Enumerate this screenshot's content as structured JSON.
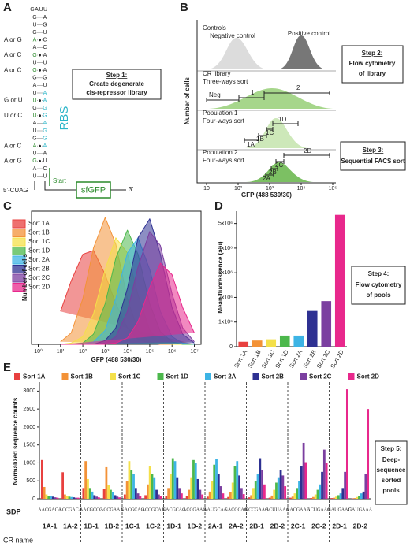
{
  "panel_a": {
    "label": "A",
    "loop": [
      "G",
      "A",
      "U",
      "U"
    ],
    "left_strand": [
      "G",
      "U",
      "G",
      "A",
      "A",
      "G",
      "U",
      "G",
      "G",
      "A",
      "U",
      "U",
      "G",
      "U",
      "A",
      "U",
      "G",
      "A",
      "U",
      "G",
      "A",
      "U"
    ],
    "right_strand": [
      "A",
      "G",
      "U",
      "C",
      "C",
      "A",
      "U",
      "A",
      "G",
      "U",
      "A",
      "A",
      "G",
      "G",
      "A",
      "G",
      "G",
      "A",
      "A",
      "U",
      "C",
      "U"
    ],
    "variants": [
      "A or G",
      "A or C",
      "A or C",
      "G or U",
      "U or C",
      "A or C",
      "A or G"
    ],
    "rbs": "RBS",
    "start": "Start",
    "five_prime": "5'-CUAG",
    "gene": "sfGFP",
    "three_prime": "3'",
    "step": {
      "title": "Step 1:",
      "lines": [
        "Create degenerate",
        "cis-repressor library"
      ]
    }
  },
  "panel_b": {
    "label": "B",
    "x_axis_label": "GFP (488 530/30)",
    "y_axis_label": "Number of cells",
    "xticks": [
      "10",
      "10²",
      "10³",
      "10⁴",
      "10⁵"
    ],
    "controls": {
      "title": "Controls",
      "negative": "Negative control",
      "positive": "Positive control"
    },
    "library": {
      "title": "CR library",
      "subtitle": "Three-ways sort",
      "gates": [
        "Neg",
        "1",
        "2"
      ]
    },
    "population_1": {
      "title": "Population 1",
      "subtitle": "Four-ways sort",
      "gates": [
        "1A",
        "1B",
        "1C",
        "1D"
      ]
    },
    "population_2": {
      "title": "Population 2",
      "subtitle": "Four-ways sort",
      "gates": [
        "2A",
        "2B",
        "2C",
        "2D"
      ]
    },
    "step_2": {
      "title": "Step 2:",
      "lines": [
        "Flow cytometry",
        "of library"
      ]
    },
    "step_3": {
      "title": "Step 3:",
      "lines": [
        "Sequential  FACS sort"
      ]
    }
  },
  "step_4": {
    "title": "Step 4:",
    "lines": [
      "Flow cytometry",
      "of pools"
    ]
  },
  "step_5": {
    "title": "Step 5:",
    "lines": [
      "Deep-",
      "sequence",
      "sorted",
      "pools"
    ]
  },
  "chart_data": [
    {
      "type": "area",
      "label": "C",
      "x_label": "GFP (488 530/30)",
      "y_label": "Number of cells",
      "log_x": true,
      "xlim": [
        0.5,
        20000000
      ],
      "xticks": [
        {
          "value": 1,
          "label": "10⁰"
        },
        {
          "value": 10,
          "label": "10¹"
        },
        {
          "value": 100,
          "label": "10²"
        },
        {
          "value": 1000,
          "label": "10³"
        },
        {
          "value": 10000,
          "label": "10⁴"
        },
        {
          "value": 100000,
          "label": "10⁵"
        },
        {
          "value": 1000000,
          "label": "10⁶"
        },
        {
          "value": 10000000,
          "label": "10⁷"
        }
      ],
      "ylim": [
        0,
        105
      ],
      "x": [
        10,
        30,
        100,
        300,
        1000,
        3000,
        10000,
        30000,
        100000,
        300000,
        1000000,
        3000000,
        10000000
      ],
      "series": [
        {
          "name": "Sort 1A",
          "color": "#e8403f",
          "values": [
            26,
            50,
            71,
            74,
            55,
            32,
            13,
            4,
            1,
            0,
            0,
            0,
            0
          ]
        },
        {
          "name": "Sort 1B",
          "color": "#f39237",
          "values": [
            2,
            9,
            36,
            76,
            100,
            79,
            36,
            11,
            2,
            0,
            0,
            0,
            0
          ]
        },
        {
          "name": "Sort 1C",
          "color": "#f4e04a",
          "values": [
            0,
            1,
            6,
            24,
            59,
            84,
            72,
            39,
            11,
            2,
            0,
            0,
            0
          ]
        },
        {
          "name": "Sort 1D",
          "color": "#4cb84c",
          "values": [
            0,
            0,
            1,
            8,
            32,
            68,
            90,
            71,
            32,
            10,
            2,
            0,
            0
          ]
        },
        {
          "name": "Sort 2A",
          "color": "#3db4e5",
          "values": [
            0,
            0,
            0,
            2,
            11,
            36,
            72,
            84,
            59,
            26,
            6,
            1,
            0
          ]
        },
        {
          "name": "Sort 2B",
          "color": "#2e3192",
          "values": [
            0,
            0,
            0,
            0,
            3,
            13,
            44,
            84,
            99,
            71,
            29,
            8,
            1
          ]
        },
        {
          "name": "Sort 2C",
          "color": "#7b3fa0",
          "values": [
            0,
            0,
            0,
            0,
            1,
            6,
            26,
            61,
            89,
            78,
            40,
            13,
            2
          ]
        },
        {
          "name": "Sort 2D",
          "color": "#e8288c",
          "values": [
            0,
            0,
            0,
            0,
            0,
            1,
            5,
            18,
            45,
            64,
            55,
            29,
            9
          ]
        }
      ]
    },
    {
      "type": "bar",
      "label": "D",
      "y_label": "Mean fluorescence (a.u)",
      "categories": [
        "Sort 1A",
        "Sort 1B",
        "Sort 1C",
        "Sort 1D",
        "Sort 2A",
        "Sort 2B",
        "Sort 2C",
        "Sort 2D"
      ],
      "values": [
        200000,
        250000,
        300000,
        450000,
        450000,
        1450000,
        1850000,
        5350000
      ],
      "colors": [
        "#e8403f",
        "#f39237",
        "#f4e04a",
        "#4cb84c",
        "#3db4e5",
        "#2e3192",
        "#7b3fa0",
        "#e8288c"
      ],
      "ylim": [
        0,
        5500000
      ],
      "yticks": [
        0,
        {
          "value": 1000000,
          "label": "1x10⁶"
        },
        {
          "value": 2000000,
          "label": "2x10⁶"
        },
        {
          "value": 3000000,
          "label": "3x10⁶"
        },
        {
          "value": 4000000,
          "label": "4x10⁶"
        },
        {
          "value": 5000000,
          "label": "5x10⁶"
        }
      ]
    },
    {
      "type": "grouped_bar",
      "label": "E",
      "y_label": "Normalized sequence counts",
      "sdp_label": "SDP",
      "category_label": "CR name",
      "categories": [
        "1A-1",
        "1A-2",
        "1B-1",
        "1B-2",
        "1C-1",
        "1C-2",
        "1D-1",
        "1D-2",
        "2A-1",
        "2A-2",
        "2B-1",
        "2B-2",
        "2C-1",
        "2C-2",
        "2D-1",
        "2D-2"
      ],
      "sdp": [
        "AACGACA",
        "ACCGACA",
        "AACGCCG",
        "ACCGAAA",
        "GACGCAG",
        "ACCGCAG",
        "GACGCAG",
        "ACCGAAG",
        "AAUGCAA",
        "GACGCAG",
        "GCCGAAG",
        "ACUUAAA",
        "GACGAAG",
        "ACUGAAG",
        "GAUGAAG",
        "GAUGAAA"
      ],
      "ylim": [
        0,
        3250
      ],
      "yticks": [
        0,
        500,
        1000,
        1500,
        2000,
        2500,
        3000
      ],
      "series": [
        {
          "name": "Sort 1A",
          "color": "#e8403f",
          "values": [
            1080,
            740,
            300,
            280,
            120,
            100,
            80,
            70,
            60,
            50,
            40,
            30,
            30,
            20,
            20,
            10
          ]
        },
        {
          "name": "Sort 1B",
          "color": "#f39237",
          "values": [
            330,
            120,
            1050,
            880,
            500,
            400,
            300,
            250,
            200,
            180,
            100,
            90,
            60,
            50,
            30,
            20
          ]
        },
        {
          "name": "Sort 1C",
          "color": "#f4e04a",
          "values": [
            120,
            80,
            550,
            380,
            1050,
            900,
            700,
            600,
            500,
            450,
            300,
            250,
            150,
            120,
            60,
            50
          ]
        },
        {
          "name": "Sort 1D",
          "color": "#4cb84c",
          "values": [
            80,
            60,
            300,
            250,
            800,
            700,
            1130,
            1080,
            950,
            900,
            500,
            450,
            300,
            250,
            100,
            80
          ]
        },
        {
          "name": "Sort 2A",
          "color": "#3db4e5",
          "values": [
            80,
            50,
            200,
            180,
            700,
            600,
            1050,
            1000,
            1100,
            1050,
            700,
            600,
            500,
            400,
            150,
            150
          ]
        },
        {
          "name": "Sort 2B",
          "color": "#2e3192",
          "values": [
            60,
            40,
            100,
            100,
            300,
            250,
            600,
            550,
            700,
            650,
            1130,
            800,
            900,
            750,
            300,
            200
          ]
        },
        {
          "name": "Sort 2C",
          "color": "#7b3fa0",
          "values": [
            40,
            30,
            60,
            60,
            150,
            120,
            300,
            250,
            350,
            300,
            800,
            650,
            1560,
            1370,
            750,
            700
          ]
        },
        {
          "name": "Sort 2D",
          "color": "#e8288c",
          "values": [
            30,
            30,
            40,
            40,
            80,
            70,
            150,
            120,
            150,
            130,
            400,
            350,
            1020,
            1000,
            3050,
            2500
          ]
        }
      ]
    }
  ]
}
